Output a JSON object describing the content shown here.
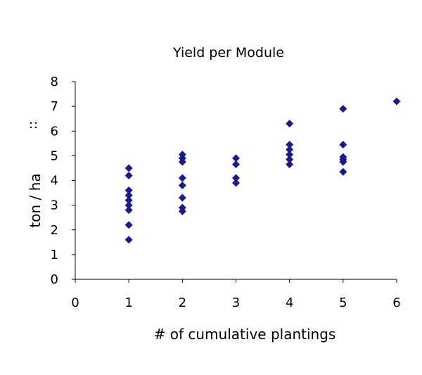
{
  "chart_data": {
    "type": "scatter",
    "title": "Yield per Module",
    "xlabel": "# of cumulative plantings",
    "ylabel": "ton / ha",
    "y_mark": "::",
    "xlim": [
      0,
      6
    ],
    "ylim": [
      0,
      8
    ],
    "x_ticks": [
      0,
      1,
      2,
      3,
      4,
      5,
      6
    ],
    "y_ticks": [
      0,
      1,
      2,
      3,
      4,
      5,
      6,
      7,
      8
    ],
    "grid": false,
    "legend": "none",
    "marker": "diamond",
    "color": "#1a1a8c",
    "series": [
      {
        "points": [
          [
            1,
            4.5
          ],
          [
            1,
            4.2
          ],
          [
            1,
            3.6
          ],
          [
            1,
            3.4
          ],
          [
            1,
            3.2
          ],
          [
            1,
            3.0
          ],
          [
            1,
            2.8
          ],
          [
            1,
            2.2
          ],
          [
            1,
            1.6
          ],
          [
            2,
            5.05
          ],
          [
            2,
            4.9
          ],
          [
            2,
            4.75
          ],
          [
            2,
            4.1
          ],
          [
            2,
            3.8
          ],
          [
            2,
            3.3
          ],
          [
            2,
            2.9
          ],
          [
            2,
            2.75
          ],
          [
            3,
            4.9
          ],
          [
            3,
            4.65
          ],
          [
            3,
            4.1
          ],
          [
            3,
            3.9
          ],
          [
            4,
            6.3
          ],
          [
            4,
            5.45
          ],
          [
            4,
            5.25
          ],
          [
            4,
            5.05
          ],
          [
            4,
            4.85
          ],
          [
            4,
            4.65
          ],
          [
            5,
            6.9
          ],
          [
            5,
            5.45
          ],
          [
            5,
            4.95
          ],
          [
            5,
            4.85
          ],
          [
            5,
            4.75
          ],
          [
            5,
            4.35
          ],
          [
            6,
            7.2
          ]
        ]
      }
    ]
  }
}
